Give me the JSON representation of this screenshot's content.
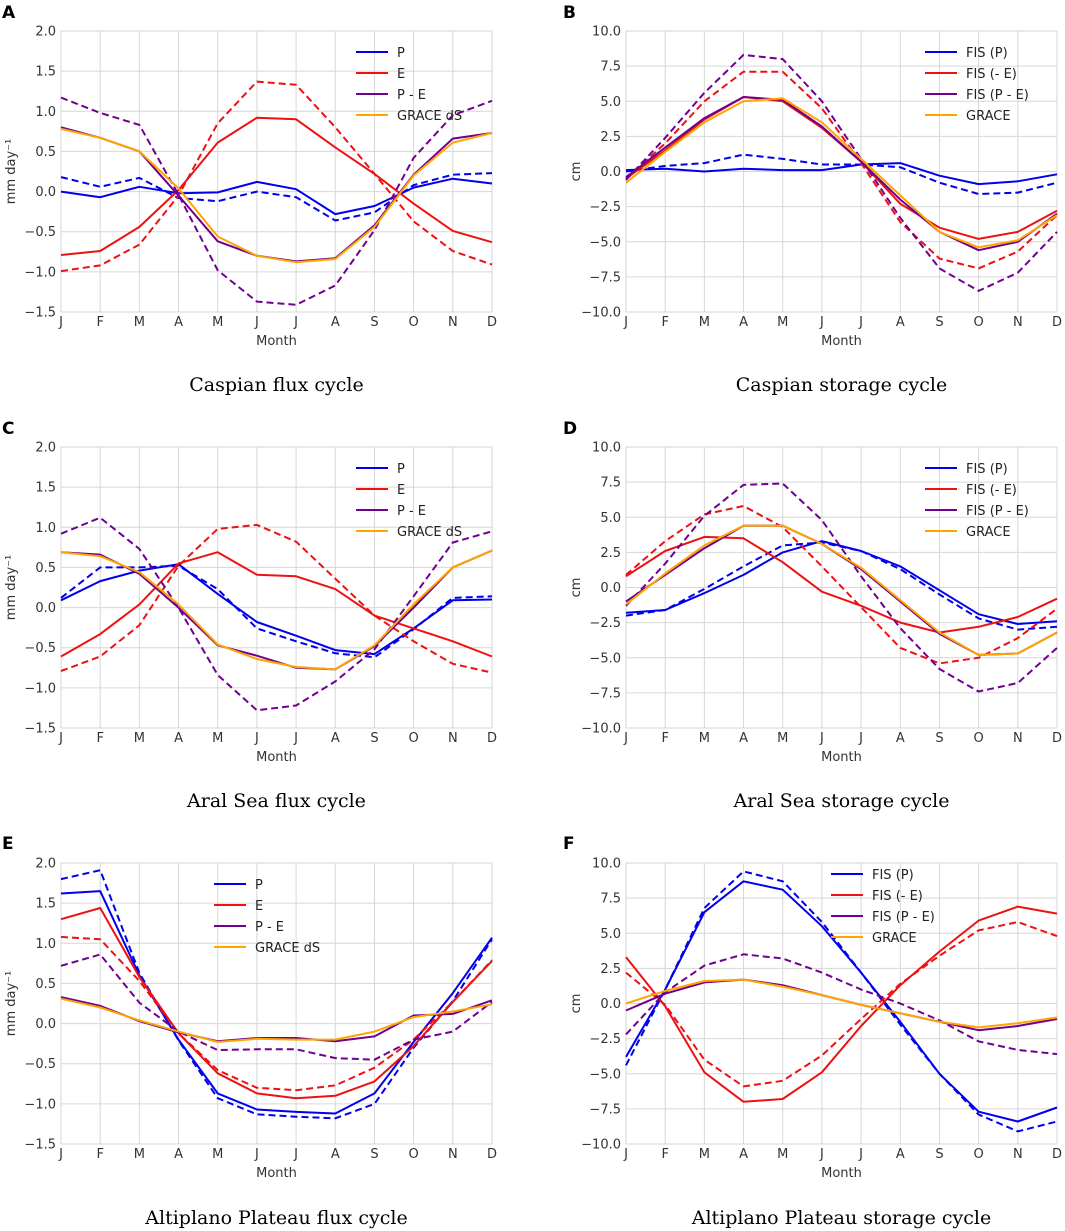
{
  "chart_data": [
    {
      "panel": "A",
      "type": "line",
      "caption": "Caspian flux cycle",
      "xlabel": "Month",
      "ylabel": "mm day⁻¹",
      "categories": [
        "J",
        "F",
        "M",
        "A",
        "M",
        "J",
        "J",
        "A",
        "S",
        "O",
        "N",
        "D"
      ],
      "ylim": [
        -1.5,
        2.0
      ],
      "yticks": [
        -1.5,
        -1.0,
        -0.5,
        0.0,
        0.5,
        1.0,
        1.5,
        2.0
      ],
      "grid": true,
      "legend": [
        "P",
        "E",
        "P - E",
        "GRACE dS"
      ],
      "legend_position": "top-right",
      "series": [
        {
          "name": "P",
          "color": "#0000ee",
          "dashed": false,
          "values": [
            0.0,
            -0.07,
            0.06,
            -0.02,
            -0.01,
            0.12,
            0.03,
            -0.28,
            -0.18,
            0.05,
            0.16,
            0.1
          ]
        },
        {
          "name": "P",
          "color": "#0000ee",
          "dashed": true,
          "values": [
            0.18,
            0.06,
            0.17,
            -0.08,
            -0.12,
            0.0,
            -0.07,
            -0.36,
            -0.26,
            0.08,
            0.21,
            0.23
          ]
        },
        {
          "name": "E",
          "color": "#ee1111",
          "dashed": false,
          "values": [
            -0.79,
            -0.74,
            -0.44,
            0.02,
            0.61,
            0.92,
            0.9,
            0.55,
            0.22,
            -0.15,
            -0.49,
            -0.63
          ]
        },
        {
          "name": "E",
          "color": "#ee1111",
          "dashed": true,
          "values": [
            -0.99,
            -0.92,
            -0.66,
            -0.05,
            0.85,
            1.37,
            1.33,
            0.8,
            0.22,
            -0.37,
            -0.74,
            -0.91
          ]
        },
        {
          "name": "P - E",
          "color": "#700090",
          "dashed": false,
          "values": [
            0.8,
            0.67,
            0.5,
            -0.05,
            -0.62,
            -0.8,
            -0.87,
            -0.83,
            -0.42,
            0.21,
            0.66,
            0.73
          ]
        },
        {
          "name": "P - E",
          "color": "#700090",
          "dashed": true,
          "values": [
            1.17,
            0.98,
            0.83,
            -0.04,
            -0.98,
            -1.37,
            -1.41,
            -1.17,
            -0.48,
            0.42,
            0.95,
            1.13
          ]
        },
        {
          "name": "GRACE dS",
          "color": "#ffa500",
          "dashed": false,
          "values": [
            0.78,
            0.67,
            0.5,
            0.04,
            -0.56,
            -0.8,
            -0.88,
            -0.84,
            -0.44,
            0.2,
            0.61,
            0.73
          ]
        }
      ]
    },
    {
      "panel": "B",
      "type": "line",
      "caption": "Caspian storage cycle",
      "xlabel": "Month",
      "ylabel": "cm",
      "categories": [
        "J",
        "F",
        "M",
        "A",
        "M",
        "J",
        "J",
        "A",
        "S",
        "O",
        "N",
        "D"
      ],
      "ylim": [
        -10.0,
        10.0
      ],
      "yticks": [
        -10.0,
        -7.5,
        -5.0,
        -2.5,
        0.0,
        2.5,
        5.0,
        7.5,
        10.0
      ],
      "grid": true,
      "legend": [
        "FIS (P)",
        "FIS (- E)",
        "FIS (P - E)",
        "GRACE"
      ],
      "legend_position": "top-right",
      "series": [
        {
          "name": "FIS (P)",
          "color": "#0000ee",
          "dashed": false,
          "values": [
            0.1,
            0.2,
            0.0,
            0.2,
            0.1,
            0.1,
            0.5,
            0.6,
            -0.3,
            -0.9,
            -0.7,
            -0.2
          ]
        },
        {
          "name": "FIS (P)",
          "color": "#0000ee",
          "dashed": true,
          "values": [
            0.0,
            0.4,
            0.6,
            1.2,
            0.9,
            0.5,
            0.5,
            0.3,
            -0.8,
            -1.6,
            -1.5,
            -0.8
          ]
        },
        {
          "name": "FIS (- E)",
          "color": "#ee1111",
          "dashed": false,
          "values": [
            -0.5,
            1.5,
            3.7,
            5.3,
            5.0,
            3.1,
            0.7,
            -2.3,
            -4.0,
            -4.8,
            -4.3,
            -2.8
          ]
        },
        {
          "name": "FIS (- E)",
          "color": "#ee1111",
          "dashed": true,
          "values": [
            -0.5,
            2.0,
            5.0,
            7.1,
            7.1,
            4.5,
            0.6,
            -3.6,
            -6.2,
            -6.9,
            -5.7,
            -3.1
          ]
        },
        {
          "name": "FIS (P - E)",
          "color": "#700090",
          "dashed": false,
          "values": [
            -0.4,
            1.7,
            3.8,
            5.3,
            5.1,
            3.2,
            0.7,
            -2.0,
            -4.3,
            -5.6,
            -5.0,
            -3.0
          ]
        },
        {
          "name": "FIS (P - E)",
          "color": "#700090",
          "dashed": true,
          "values": [
            -0.6,
            2.4,
            5.6,
            8.3,
            8.0,
            5.0,
            0.9,
            -3.3,
            -6.9,
            -8.5,
            -7.2,
            -4.3
          ]
        },
        {
          "name": "GRACE",
          "color": "#ffa500",
          "dashed": false,
          "values": [
            -0.8,
            1.4,
            3.5,
            5.0,
            5.2,
            3.5,
            0.9,
            -1.7,
            -4.3,
            -5.4,
            -4.9,
            -3.1
          ]
        }
      ]
    },
    {
      "panel": "C",
      "type": "line",
      "caption": "Aral Sea flux cycle",
      "xlabel": "Month",
      "ylabel": "mm day⁻¹",
      "categories": [
        "J",
        "F",
        "M",
        "A",
        "M",
        "J",
        "J",
        "A",
        "S",
        "O",
        "N",
        "D"
      ],
      "ylim": [
        -1.5,
        2.0
      ],
      "yticks": [
        -1.5,
        -1.0,
        -0.5,
        0.0,
        0.5,
        1.0,
        1.5,
        2.0
      ],
      "grid": true,
      "legend": [
        "P",
        "E",
        "P - E",
        "GRACE dS"
      ],
      "legend_position": "top-right",
      "series": [
        {
          "name": "P",
          "color": "#0000ee",
          "dashed": false,
          "values": [
            0.09,
            0.33,
            0.46,
            0.54,
            0.17,
            -0.18,
            -0.35,
            -0.53,
            -0.58,
            -0.26,
            0.09,
            0.1
          ]
        },
        {
          "name": "P",
          "color": "#0000ee",
          "dashed": true,
          "values": [
            0.12,
            0.5,
            0.5,
            0.52,
            0.23,
            -0.26,
            -0.42,
            -0.57,
            -0.62,
            -0.27,
            0.12,
            0.14
          ]
        },
        {
          "name": "E",
          "color": "#ee1111",
          "dashed": false,
          "values": [
            -0.61,
            -0.33,
            0.04,
            0.55,
            0.69,
            0.41,
            0.39,
            0.23,
            -0.1,
            -0.26,
            -0.42,
            -0.61
          ]
        },
        {
          "name": "E",
          "color": "#ee1111",
          "dashed": true,
          "values": [
            -0.79,
            -0.61,
            -0.22,
            0.52,
            0.98,
            1.03,
            0.82,
            0.36,
            -0.1,
            -0.42,
            -0.7,
            -0.81
          ]
        },
        {
          "name": "P - E",
          "color": "#700090",
          "dashed": false,
          "values": [
            0.69,
            0.66,
            0.42,
            0.0,
            -0.47,
            -0.6,
            -0.75,
            -0.77,
            -0.48,
            0.0,
            0.5,
            0.71
          ]
        },
        {
          "name": "P - E",
          "color": "#700090",
          "dashed": true,
          "values": [
            0.92,
            1.12,
            0.73,
            0.0,
            -0.84,
            -1.28,
            -1.22,
            -0.92,
            -0.52,
            0.14,
            0.81,
            0.95
          ]
        },
        {
          "name": "GRACE dS",
          "color": "#ffa500",
          "dashed": false,
          "values": [
            0.69,
            0.64,
            0.44,
            0.04,
            -0.46,
            -0.64,
            -0.74,
            -0.77,
            -0.47,
            0.04,
            0.5,
            0.71
          ]
        }
      ]
    },
    {
      "panel": "D",
      "type": "line",
      "caption": "Aral Sea storage cycle",
      "xlabel": "Month",
      "ylabel": "cm",
      "categories": [
        "J",
        "F",
        "M",
        "A",
        "M",
        "J",
        "J",
        "A",
        "S",
        "O",
        "N",
        "D"
      ],
      "ylim": [
        -10.0,
        10.0
      ],
      "yticks": [
        -10.0,
        -7.5,
        -5.0,
        -2.5,
        0.0,
        2.5,
        5.0,
        7.5,
        10.0
      ],
      "grid": true,
      "legend": [
        "FIS (P)",
        "FIS (- E)",
        "FIS (P - E)",
        "GRACE"
      ],
      "legend_position": "top-right",
      "series": [
        {
          "name": "FIS (P)",
          "color": "#0000ee",
          "dashed": false,
          "values": [
            -1.8,
            -1.6,
            -0.4,
            0.9,
            2.5,
            3.3,
            2.6,
            1.5,
            -0.2,
            -1.9,
            -2.6,
            -2.4
          ]
        },
        {
          "name": "FIS (P)",
          "color": "#0000ee",
          "dashed": true,
          "values": [
            -2.0,
            -1.6,
            -0.1,
            1.5,
            3.0,
            3.2,
            2.6,
            1.3,
            -0.5,
            -2.2,
            -3.0,
            -2.8
          ]
        },
        {
          "name": "FIS (- E)",
          "color": "#ee1111",
          "dashed": false,
          "values": [
            0.8,
            2.6,
            3.6,
            3.5,
            1.8,
            -0.3,
            -1.3,
            -2.5,
            -3.2,
            -2.8,
            -2.1,
            -0.8
          ]
        },
        {
          "name": "FIS (- E)",
          "color": "#ee1111",
          "dashed": true,
          "values": [
            0.9,
            3.3,
            5.2,
            5.8,
            4.3,
            1.5,
            -1.4,
            -4.3,
            -5.4,
            -5.0,
            -3.6,
            -1.5
          ]
        },
        {
          "name": "FIS (P - E)",
          "color": "#700090",
          "dashed": false,
          "values": [
            -1.0,
            0.9,
            2.8,
            4.4,
            4.4,
            3.1,
            1.3,
            -1.0,
            -3.3,
            -4.8,
            -4.7,
            -3.2
          ]
        },
        {
          "name": "FIS (P - E)",
          "color": "#700090",
          "dashed": true,
          "values": [
            -1.3,
            1.7,
            5.1,
            7.3,
            7.4,
            4.8,
            0.8,
            -2.9,
            -5.8,
            -7.4,
            -6.8,
            -4.3
          ]
        },
        {
          "name": "GRACE",
          "color": "#ffa500",
          "dashed": false,
          "values": [
            -1.2,
            1.0,
            3.0,
            4.4,
            4.4,
            3.1,
            1.4,
            -0.9,
            -3.2,
            -4.8,
            -4.7,
            -3.2
          ]
        }
      ]
    },
    {
      "panel": "E",
      "type": "line",
      "caption": "Altiplano Plateau flux cycle",
      "xlabel": "Month",
      "ylabel": "mm day⁻¹",
      "categories": [
        "J",
        "F",
        "M",
        "A",
        "M",
        "J",
        "J",
        "A",
        "S",
        "O",
        "N",
        "D"
      ],
      "ylim": [
        -1.5,
        2.0
      ],
      "yticks": [
        -1.5,
        -1.0,
        -0.5,
        0.0,
        0.5,
        1.0,
        1.5,
        2.0
      ],
      "grid": true,
      "legend": [
        "P",
        "E",
        "P - E",
        "GRACE dS"
      ],
      "legend_position": "top-center",
      "series": [
        {
          "name": "P",
          "color": "#0000ee",
          "dashed": false,
          "values": [
            1.62,
            1.65,
            0.6,
            -0.2,
            -0.87,
            -1.07,
            -1.1,
            -1.12,
            -0.87,
            -0.23,
            0.38,
            1.07
          ]
        },
        {
          "name": "P",
          "color": "#0000ee",
          "dashed": true,
          "values": [
            1.8,
            1.91,
            0.63,
            -0.21,
            -0.93,
            -1.13,
            -1.16,
            -1.18,
            -1.0,
            -0.3,
            0.28,
            1.05
          ]
        },
        {
          "name": "E",
          "color": "#ee1111",
          "dashed": false,
          "values": [
            1.3,
            1.44,
            0.58,
            -0.12,
            -0.62,
            -0.87,
            -0.93,
            -0.9,
            -0.72,
            -0.28,
            0.27,
            0.78
          ]
        },
        {
          "name": "E",
          "color": "#ee1111",
          "dashed": true,
          "values": [
            1.08,
            1.05,
            0.53,
            -0.12,
            -0.58,
            -0.8,
            -0.83,
            -0.77,
            -0.55,
            -0.2,
            0.27,
            0.79
          ]
        },
        {
          "name": "P - E",
          "color": "#700090",
          "dashed": false,
          "values": [
            0.33,
            0.22,
            0.03,
            -0.11,
            -0.22,
            -0.18,
            -0.18,
            -0.22,
            -0.16,
            0.1,
            0.12,
            0.29
          ]
        },
        {
          "name": "P - E",
          "color": "#700090",
          "dashed": true,
          "values": [
            0.72,
            0.86,
            0.26,
            -0.1,
            -0.33,
            -0.32,
            -0.32,
            -0.43,
            -0.45,
            -0.2,
            -0.1,
            0.27
          ]
        },
        {
          "name": "GRACE dS",
          "color": "#ffa500",
          "dashed": false,
          "values": [
            0.31,
            0.2,
            0.04,
            -0.1,
            -0.23,
            -0.19,
            -0.2,
            -0.2,
            -0.1,
            0.08,
            0.15,
            0.24
          ]
        }
      ]
    },
    {
      "panel": "F",
      "type": "line",
      "caption": "Altiplano Plateau storage cycle",
      "xlabel": "Month",
      "ylabel": "cm",
      "categories": [
        "J",
        "F",
        "M",
        "A",
        "M",
        "J",
        "J",
        "A",
        "S",
        "O",
        "N",
        "D"
      ],
      "ylim": [
        -10.0,
        10.0
      ],
      "yticks": [
        -10.0,
        -7.5,
        -5.0,
        -2.5,
        0.0,
        2.5,
        5.0,
        7.5,
        10.0
      ],
      "grid": true,
      "legend": [
        "FIS (P)",
        "FIS (- E)",
        "FIS (P - E)",
        "GRACE"
      ],
      "legend_position": "top-center",
      "series": [
        {
          "name": "FIS (P)",
          "color": "#0000ee",
          "dashed": false,
          "values": [
            -3.8,
            1.0,
            6.5,
            8.7,
            8.1,
            5.5,
            2.2,
            -1.3,
            -5.0,
            -7.7,
            -8.4,
            -7.4
          ]
        },
        {
          "name": "FIS (P)",
          "color": "#0000ee",
          "dashed": true,
          "values": [
            -4.4,
            1.0,
            6.8,
            9.4,
            8.7,
            5.8,
            2.2,
            -1.5,
            -5.0,
            -7.9,
            -9.1,
            -8.4
          ]
        },
        {
          "name": "FIS (- E)",
          "color": "#ee1111",
          "dashed": false,
          "values": [
            3.3,
            -0.2,
            -4.9,
            -7.0,
            -6.8,
            -4.9,
            -1.6,
            1.3,
            3.7,
            5.9,
            6.9,
            6.4
          ]
        },
        {
          "name": "FIS (- E)",
          "color": "#ee1111",
          "dashed": true,
          "values": [
            2.2,
            -0.1,
            -4.0,
            -5.9,
            -5.5,
            -3.7,
            -1.1,
            1.4,
            3.4,
            5.2,
            5.8,
            4.8
          ]
        },
        {
          "name": "FIS (P - E)",
          "color": "#700090",
          "dashed": false,
          "values": [
            -0.5,
            0.7,
            1.5,
            1.7,
            1.3,
            0.6,
            -0.1,
            -0.7,
            -1.3,
            -1.9,
            -1.6,
            -1.1
          ]
        },
        {
          "name": "FIS (P - E)",
          "color": "#700090",
          "dashed": true,
          "values": [
            -2.2,
            0.8,
            2.7,
            3.5,
            3.2,
            2.2,
            1.0,
            0.0,
            -1.2,
            -2.7,
            -3.3,
            -3.6
          ]
        },
        {
          "name": "GRACE",
          "color": "#ffa500",
          "dashed": false,
          "values": [
            0.0,
            0.9,
            1.6,
            1.7,
            1.2,
            0.6,
            -0.1,
            -0.7,
            -1.3,
            -1.7,
            -1.4,
            -1.0
          ]
        }
      ]
    }
  ]
}
